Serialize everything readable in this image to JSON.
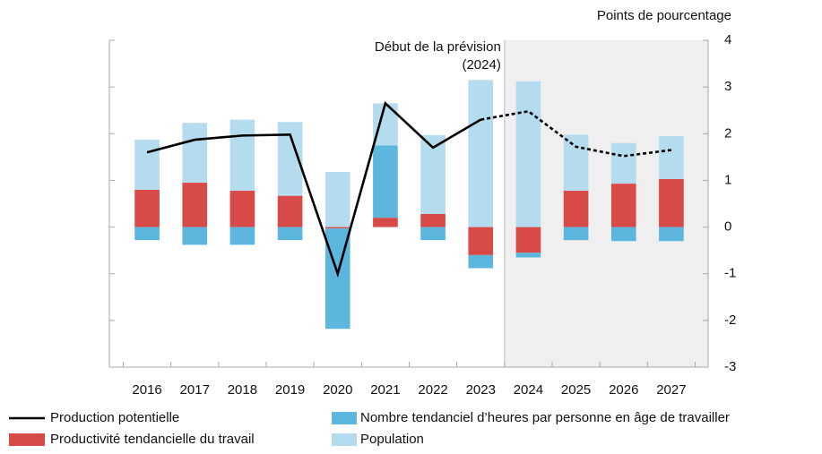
{
  "chart_data": {
    "type": "bar",
    "y_axis_label": "Points de pourcentage",
    "annotation": [
      "Début de la prévision",
      "(2024)"
    ],
    "forecast_start": "2024",
    "categories": [
      "2016",
      "2017",
      "2018",
      "2019",
      "2020",
      "2021",
      "2022",
      "2023",
      "2024",
      "2025",
      "2026",
      "2027"
    ],
    "series": [
      {
        "name": "Productivité tendancielle du travail",
        "type": "bar",
        "color": "#d84a47",
        "values": [
          0.8,
          0.95,
          0.78,
          0.67,
          -0.03,
          0.2,
          0.28,
          -0.6,
          -0.55,
          0.78,
          0.93,
          1.03
        ]
      },
      {
        "name": "Nombre tendanciel d’heures par personne en âge de travailler",
        "type": "bar",
        "color": "#5db6dd",
        "values": [
          -0.28,
          -0.38,
          -0.38,
          -0.28,
          -2.15,
          1.55,
          -0.28,
          -0.28,
          -0.1,
          -0.28,
          -0.3,
          -0.3
        ]
      },
      {
        "name": "Population",
        "type": "bar",
        "color": "#b5dcee",
        "values": [
          1.07,
          1.28,
          1.52,
          1.58,
          1.18,
          0.9,
          1.69,
          3.15,
          3.12,
          1.2,
          0.87,
          0.92
        ]
      },
      {
        "name": "Production potentielle",
        "type": "line",
        "color": "#000000",
        "values": [
          1.6,
          1.87,
          1.96,
          1.98,
          -1.0,
          2.65,
          1.7,
          2.3,
          2.48,
          1.72,
          1.52,
          1.65
        ]
      }
    ],
    "ylim": [
      -3,
      4
    ],
    "yticks": [
      -3,
      -2,
      -1,
      0,
      1,
      2,
      3,
      4
    ]
  }
}
